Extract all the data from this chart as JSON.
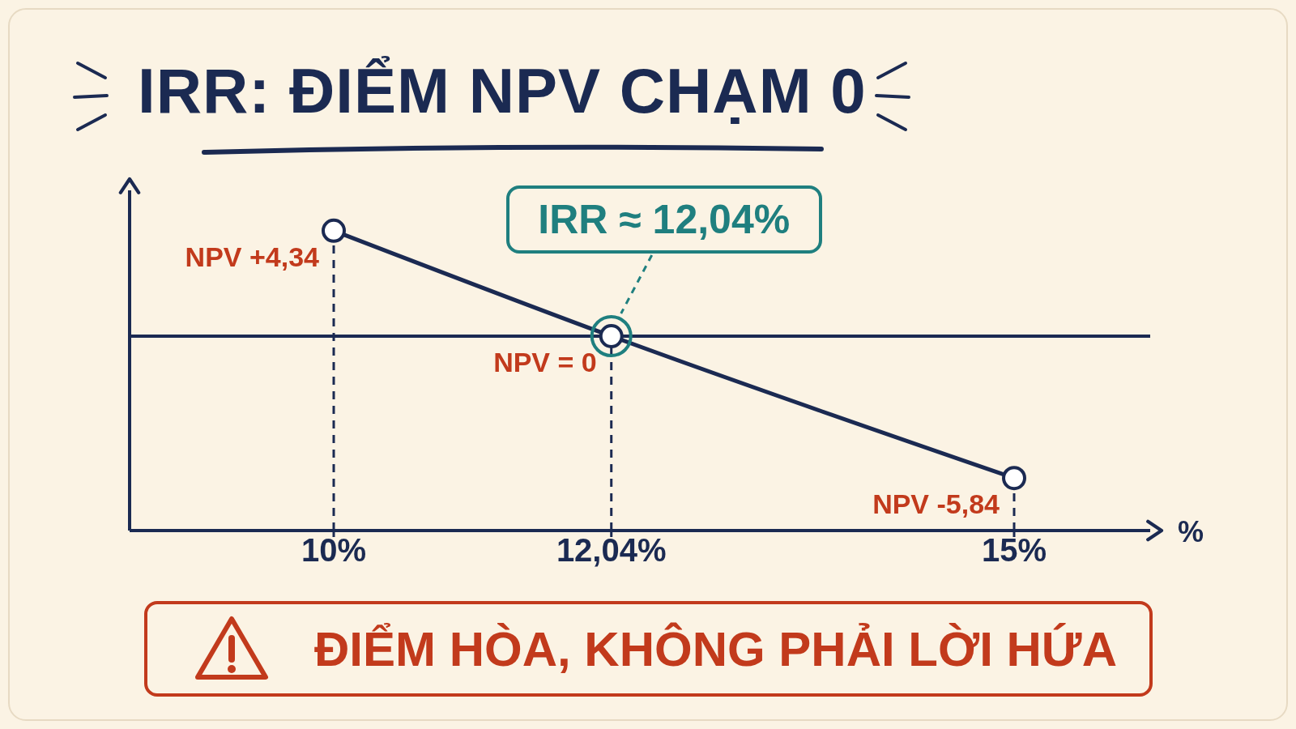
{
  "chart_data": {
    "type": "line",
    "title": "IRR: ĐIỂM NPV CHẠM 0",
    "xlabel": "%",
    "x": [
      10,
      12.04,
      15
    ],
    "series": [
      {
        "color": "#1b2a52",
        "values": [
          4.34,
          0,
          -5.84
        ],
        "value_labels": [
          "NPV +4,34",
          "NPV = 0",
          "NPV -5,84"
        ]
      }
    ],
    "xlim": [
      8.5,
      16
    ],
    "xticks": [
      {
        "value": 10,
        "label": "10%"
      },
      {
        "value": 12.04,
        "label": "12,04%"
      },
      {
        "value": 15,
        "label": "15%"
      }
    ],
    "ylim": [
      -8,
      6
    ],
    "tick_labels": "x",
    "marker": "circle",
    "ref_lines": [
      {
        "axis": "y",
        "value": 0
      },
      {
        "axis": "x",
        "value": 10,
        "line_style": "dashed"
      },
      {
        "axis": "x",
        "value": 12.04,
        "line_style": "dashed"
      },
      {
        "axis": "x",
        "value": 15,
        "line_style": "dashed"
      }
    ],
    "annotations": [
      {
        "text": "IRR ≈ 12,04%",
        "x": 12.04,
        "y": 0
      },
      "ĐIỂM HÒA, KHÔNG PHẢI LỜI HỨA"
    ]
  }
}
